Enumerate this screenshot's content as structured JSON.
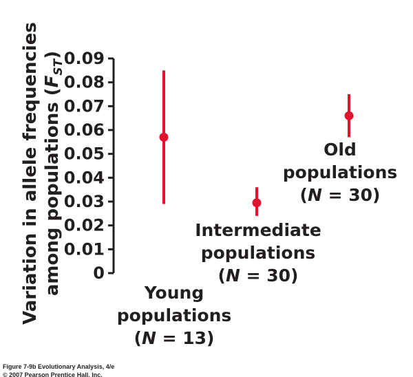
{
  "chart_data": {
    "type": "scatter",
    "ylabel_line1": "Variation in allele frequencies",
    "ylabel_line2_prefix": "among populations (",
    "ylabel_symbol": "F",
    "ylabel_subscript": "ST",
    "ylabel_line2_suffix": ")",
    "ylim": [
      0,
      0.09
    ],
    "yticks": [
      "0",
      "0.01",
      "0.02",
      "0.03",
      "0.04",
      "0.05",
      "0.06",
      "0.07",
      "0.08",
      "0.09"
    ],
    "grid": false,
    "points": [
      {
        "label_lines": [
          "Young",
          "populations"
        ],
        "n_prefix": "(",
        "n_symbol": "N",
        "n_text": " = 13)",
        "value": 0.057,
        "error_low": 0.029,
        "error_high": 0.085
      },
      {
        "label_lines": [
          "Intermediate",
          "populations"
        ],
        "n_prefix": "(",
        "n_symbol": "N",
        "n_text": " = 30)",
        "value": 0.0295,
        "error_low": 0.024,
        "error_high": 0.036
      },
      {
        "label_lines": [
          "Old",
          "populations"
        ],
        "n_prefix": "(",
        "n_symbol": "N",
        "n_text": " = 30)",
        "value": 0.066,
        "error_low": 0.057,
        "error_high": 0.075
      }
    ],
    "colors": {
      "marker": "#e2132c",
      "axis": "#231f20",
      "text": "#231f20"
    }
  },
  "caption": {
    "line1": "Figure 7-9b  Evolutionary Analysis, 4/e",
    "line2": "© 2007 Pearson Prentice Hall, Inc."
  }
}
